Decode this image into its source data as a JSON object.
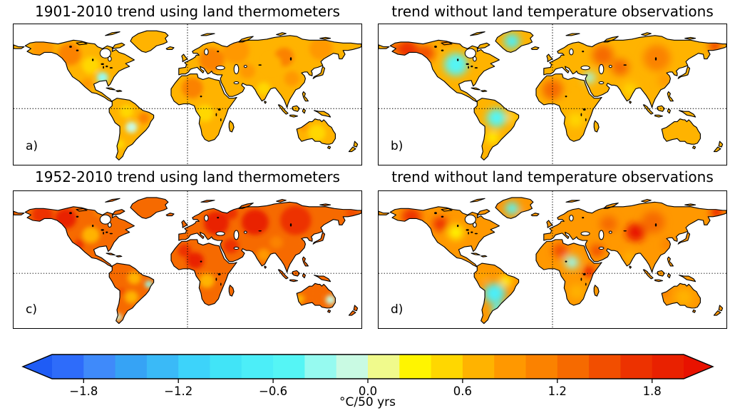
{
  "figure": {
    "kind": "multi-panel global temperature trend maps",
    "background": "#ffffff"
  },
  "chart_data": {
    "type": "heatmap",
    "subtype": "global-map-trend-panels",
    "projection": {
      "lon_range": [
        -180,
        180
      ],
      "lat_range": [
        -60,
        90
      ],
      "equator_dotted_line": true,
      "prime_meridian_dotted_line": true,
      "ocean_color": "#ffffff",
      "coastline_color": "#000000"
    },
    "patch_format": [
      "lon",
      "lat",
      "radius_deg",
      "trend_c_per_50yr"
    ],
    "panels": [
      {
        "id": "a",
        "label": "a)",
        "title": "1901-2010 trend using land thermometers",
        "smoothing": "low",
        "base_trend": 0.65,
        "patches": [
          [
            -150,
            64,
            12,
            0.9
          ],
          [
            -122,
            58,
            12,
            1.05
          ],
          [
            -100,
            46,
            9,
            0.55
          ],
          [
            -88,
            33,
            6,
            -0.3
          ],
          [
            -104,
            26,
            6,
            0.95
          ],
          [
            -63,
            -3,
            7,
            0.5
          ],
          [
            -58,
            -20,
            6,
            -0.2
          ],
          [
            -45,
            -10,
            6,
            1.0
          ],
          [
            -70,
            -38,
            5,
            0.45
          ],
          [
            25,
            52,
            13,
            1.0
          ],
          [
            5,
            22,
            11,
            1.05
          ],
          [
            18,
            -5,
            9,
            0.55
          ],
          [
            28,
            -26,
            7,
            0.8
          ],
          [
            50,
            62,
            14,
            0.95
          ],
          [
            100,
            55,
            10,
            1.05
          ],
          [
            138,
            64,
            12,
            0.9
          ],
          [
            79,
            21,
            7,
            0.45
          ],
          [
            108,
            32,
            8,
            0.85
          ],
          [
            134,
            -26,
            9,
            0.55
          ],
          [
            120,
            -19,
            5,
            0.9
          ],
          [
            62,
            40,
            8,
            0.9
          ],
          [
            88,
            48,
            9,
            0.7
          ]
        ]
      },
      {
        "id": "b",
        "label": "b)",
        "title": "trend without land temperature observations",
        "smoothing": "high",
        "base_trend": 0.75,
        "patches": [
          [
            -150,
            63,
            11,
            1.6
          ],
          [
            -131,
            59,
            9,
            1.4
          ],
          [
            -96,
            76,
            4,
            2.2
          ],
          [
            -110,
            74,
            4,
            1.9
          ],
          [
            -100,
            47,
            12,
            -0.55
          ],
          [
            -42,
            72,
            8,
            -0.7
          ],
          [
            -58,
            -10,
            10,
            -0.45
          ],
          [
            -62,
            -31,
            6,
            0.3
          ],
          [
            -42,
            -9,
            5,
            0.5
          ],
          [
            0,
            20,
            11,
            1.3
          ],
          [
            14,
            9,
            7,
            0.7
          ],
          [
            24,
            -12,
            8,
            0.55
          ],
          [
            38,
            33,
            6,
            -0.25
          ],
          [
            52,
            57,
            11,
            1.2
          ],
          [
            70,
            44,
            9,
            1.3
          ],
          [
            108,
            54,
            14,
            1.1
          ],
          [
            80,
            20,
            7,
            0.55
          ],
          [
            116,
            30,
            7,
            0.85
          ],
          [
            135,
            -25,
            9,
            0.65
          ],
          [
            168,
            67,
            6,
            1.6
          ],
          [
            -165,
            65,
            5,
            1.4
          ]
        ]
      },
      {
        "id": "c",
        "label": "c)",
        "title": "1952-2010 trend using land thermometers",
        "smoothing": "low",
        "base_trend": 1.3,
        "patches": [
          [
            -150,
            64,
            11,
            1.8
          ],
          [
            -126,
            60,
            11,
            1.95
          ],
          [
            -100,
            42,
            9,
            0.75
          ],
          [
            -112,
            32,
            5,
            1.7
          ],
          [
            -90,
            68,
            7,
            1.0
          ],
          [
            -55,
            -5,
            7,
            0.8
          ],
          [
            -40,
            -12,
            4,
            -0.3
          ],
          [
            -58,
            -26,
            7,
            0.6
          ],
          [
            -72,
            -48,
            4,
            -0.2
          ],
          [
            -68,
            -20,
            4,
            1.5
          ],
          [
            30,
            55,
            13,
            1.85
          ],
          [
            8,
            14,
            9,
            1.95
          ],
          [
            -3,
            25,
            7,
            1.7
          ],
          [
            20,
            -8,
            8,
            0.8
          ],
          [
            28,
            -27,
            6,
            1.2
          ],
          [
            45,
            30,
            8,
            1.8
          ],
          [
            70,
            56,
            14,
            1.85
          ],
          [
            112,
            58,
            16,
            1.8
          ],
          [
            92,
            34,
            7,
            1.0
          ],
          [
            79,
            20,
            7,
            0.9
          ],
          [
            116,
            32,
            7,
            1.25
          ],
          [
            130,
            -22,
            7,
            1.35
          ],
          [
            148,
            -29,
            5,
            -0.1
          ],
          [
            116,
            -28,
            5,
            0.8
          ],
          [
            45,
            66,
            7,
            1.6
          ],
          [
            170,
            66,
            6,
            1.5
          ]
        ]
      },
      {
        "id": "d",
        "label": "d)",
        "title": "trend without land temperature observations",
        "smoothing": "high",
        "base_trend": 0.95,
        "patches": [
          [
            -146,
            62,
            10,
            1.8
          ],
          [
            -116,
            54,
            8,
            1.6
          ],
          [
            -100,
            45,
            8,
            0.25
          ],
          [
            -42,
            71,
            7,
            -0.45
          ],
          [
            -62,
            79,
            4,
            2.1
          ],
          [
            -60,
            -22,
            11,
            -0.6
          ],
          [
            -56,
            -40,
            7,
            -0.55
          ],
          [
            -48,
            -8,
            6,
            0.4
          ],
          [
            -72,
            -4,
            4,
            0.6
          ],
          [
            20,
            12,
            7,
            -0.3
          ],
          [
            38,
            2,
            6,
            2.1
          ],
          [
            8,
            25,
            8,
            1.4
          ],
          [
            25,
            -20,
            8,
            0.7
          ],
          [
            46,
            25,
            7,
            1.5
          ],
          [
            86,
            45,
            10,
            2.0
          ],
          [
            104,
            56,
            12,
            1.2
          ],
          [
            58,
            54,
            9,
            1.3
          ],
          [
            120,
            32,
            7,
            1.0
          ],
          [
            80,
            18,
            6,
            0.7
          ],
          [
            170,
            67,
            6,
            2.1
          ],
          [
            136,
            -26,
            9,
            0.7
          ],
          [
            116,
            -21,
            4,
            1.2
          ],
          [
            -30,
            65,
            4,
            0.9
          ]
        ]
      }
    ],
    "colorbar": {
      "orientation": "horizontal",
      "range": [
        -2.0,
        2.0
      ],
      "step": 0.2,
      "tick_values": [
        -1.8,
        -1.2,
        -0.6,
        0.0,
        0.6,
        1.2,
        1.8
      ],
      "tick_labels": [
        "−1.8",
        "−1.2",
        "−0.6",
        "0.0",
        "0.6",
        "1.2",
        "1.8"
      ],
      "unit_label": "°C/50 yrs",
      "colors": [
        "#2e6cfa",
        "#3f8afa",
        "#36a3f5",
        "#3abaf7",
        "#3dd3fa",
        "#41e4f7",
        "#4ceef8",
        "#55f5f5",
        "#96faf0",
        "#c9fae3",
        "#f0fa8c",
        "#fff500",
        "#ffd700",
        "#ffb300",
        "#ff9800",
        "#fb8200",
        "#f66a00",
        "#f24e00",
        "#ed3200",
        "#e92100"
      ],
      "under_color": "#1f5cf5",
      "over_color": "#e81200"
    }
  }
}
